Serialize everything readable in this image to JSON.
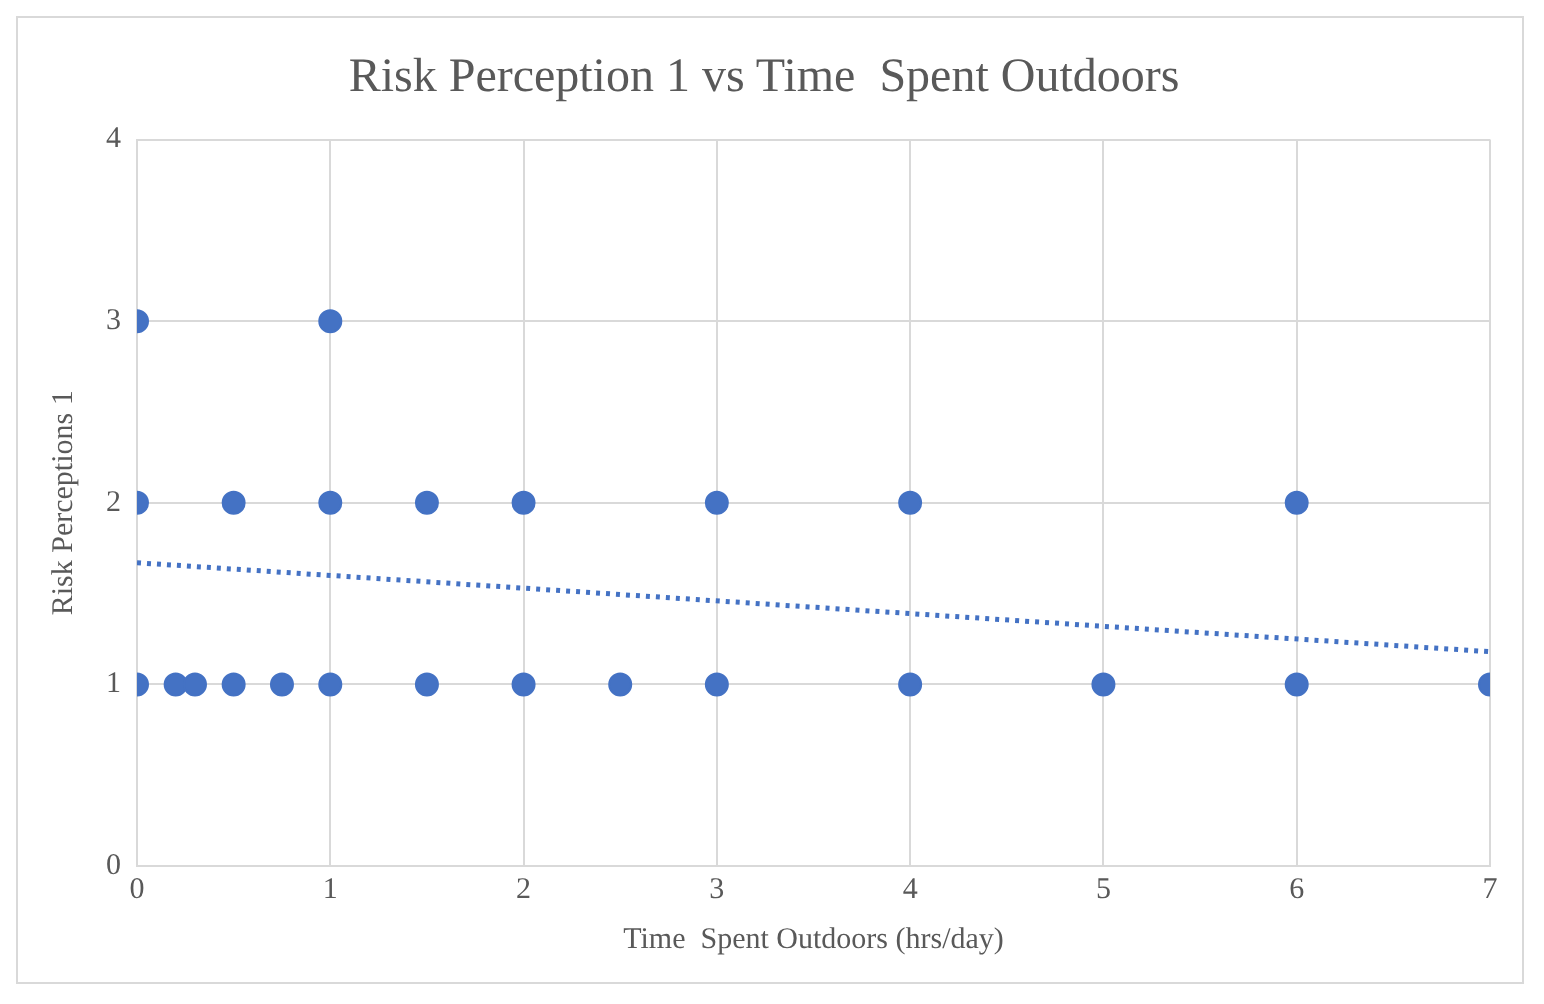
{
  "chart_data": {
    "type": "scatter",
    "title": "Risk Perception 1 vs Time  Spent Outdoors",
    "xlabel": "Time  Spent Outdoors (hrs/day)",
    "ylabel": "Risk Perceptions 1",
    "series": [
      {
        "type": "scatter",
        "color": "#4472c4",
        "marker": "circle",
        "x": [
          0,
          0.2,
          0.3,
          0.5,
          0.75,
          1,
          1.5,
          2,
          2.5,
          3,
          4,
          5,
          6,
          7,
          0,
          0.5,
          1,
          1.5,
          2,
          3,
          4,
          6,
          0,
          1
        ],
        "values": [
          1,
          1,
          1,
          1,
          1,
          1,
          1,
          1,
          1,
          1,
          1,
          1,
          1,
          1,
          2,
          2,
          2,
          2,
          2,
          2,
          2,
          2,
          3,
          3
        ]
      },
      {
        "type": "line",
        "color": "#4472c4",
        "line_style": "dotted",
        "marker": "none",
        "x": [
          0,
          7
        ],
        "values": [
          1.67,
          1.18
        ]
      }
    ],
    "xlim": [
      0,
      7
    ],
    "xticks": [
      0,
      1,
      2,
      3,
      4,
      5,
      6,
      7
    ],
    "ylim": [
      0,
      4
    ],
    "yticks": [
      0,
      1,
      2,
      3,
      4
    ],
    "grid": true,
    "legend": false
  }
}
